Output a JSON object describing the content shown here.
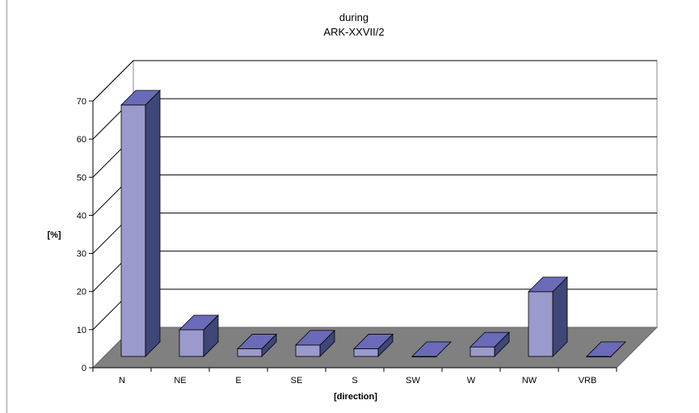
{
  "chart_data": {
    "type": "bar",
    "title": "during",
    "subtitle": "ARK-XXVII/2",
    "xlabel": "[direction]",
    "ylabel": "[%]",
    "categories": [
      "N",
      "NE",
      "E",
      "SE",
      "S",
      "SW",
      "W",
      "NW",
      "VRB"
    ],
    "values": [
      66,
      7,
      2,
      3,
      2,
      0,
      2.5,
      17,
      0
    ],
    "yticks": [
      "0",
      "10",
      "20",
      "30",
      "40",
      "50",
      "60",
      "70"
    ],
    "ylim": [
      0,
      70
    ],
    "grid": true,
    "legend": "none",
    "style": "3d-column",
    "colors": {
      "bar_front": "#9a9acc",
      "bar_top": "#6a6ab8",
      "bar_side": "#3f4678",
      "floor": "#808080",
      "wall": "#ffffff",
      "gridline": "#000000"
    }
  }
}
